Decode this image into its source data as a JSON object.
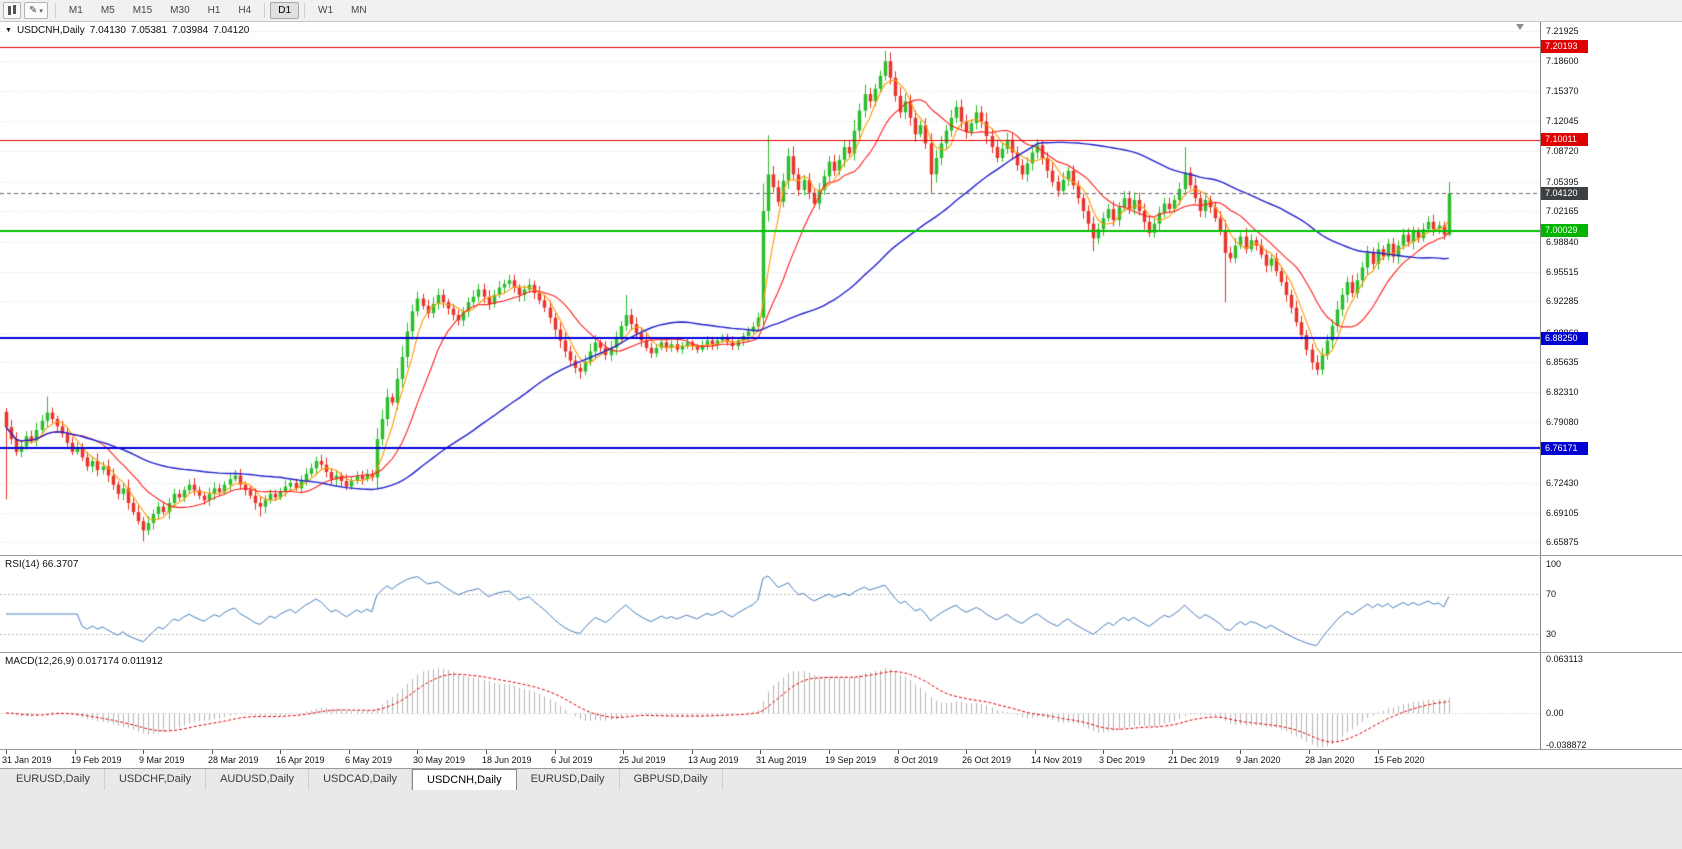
{
  "toolbar": {
    "timeframes": [
      "M1",
      "M5",
      "M15",
      "M30",
      "H1",
      "H4",
      "D1",
      "W1",
      "MN"
    ],
    "active_timeframe": "D1"
  },
  "main_chart": {
    "collapse_arrow": "▼",
    "symbol_timeframe": "USDCNH,Daily",
    "ohlc": {
      "open": "7.04130",
      "high": "7.05381",
      "low": "7.03984",
      "close": "7.04120"
    },
    "price_axis_labels": [
      "7.21925",
      "7.18600",
      "7.15370",
      "7.12045",
      "7.08720",
      "7.05395",
      "7.02165",
      "6.98840",
      "6.95515",
      "6.92285",
      "6.88860",
      "6.85635",
      "6.82310",
      "6.79080",
      "6.75755",
      "6.72430",
      "6.69105",
      "6.65875"
    ],
    "current_price_badge": "7.04120",
    "current_badge_color": "#3d4043",
    "level_badges": [
      {
        "text": "7.20193",
        "value": 7.20193,
        "color": "#e00000"
      },
      {
        "text": "7.10011",
        "value": 7.10011,
        "color": "#e00000"
      },
      {
        "text": "7.00029",
        "value": 7.00029,
        "color": "#00b400"
      },
      {
        "text": "6.88250",
        "value": 6.8825,
        "color": "#0000d0"
      },
      {
        "text": "6.76171",
        "value": 6.76171,
        "color": "#0000d0"
      }
    ]
  },
  "rsi_panel": {
    "label": "RSI(14) 66.3707",
    "current": 66.3707,
    "axis_labels": [
      {
        "text": "100",
        "value": 100
      },
      {
        "text": "70",
        "value": 70
      },
      {
        "text": "30",
        "value": 30
      }
    ],
    "dashed_levels": [
      70,
      30
    ]
  },
  "macd_panel": {
    "label": "MACD(12,26,9) 0.017174 0.011912",
    "main_current": 0.017174,
    "signal_current": 0.011912,
    "axis_labels": [
      {
        "text": "0.063113",
        "value": 0.063113
      },
      {
        "text": "0.00",
        "value": 0
      },
      {
        "text": "-0.038872",
        "value": -0.038872
      }
    ]
  },
  "date_axis": [
    "31 Jan 2019",
    "19 Feb 2019",
    "9 Mar 2019",
    "28 Mar 2019",
    "16 Apr 2019",
    "6 May 2019",
    "30 May 2019",
    "18 Jun 2019",
    "6 Jul 2019",
    "25 Jul 2019",
    "13 Aug 2019",
    "31 Aug 2019",
    "19 Sep 2019",
    "8 Oct 2019",
    "26 Oct 2019",
    "14 Nov 2019",
    "3 Dec 2019",
    "21 Dec 2019",
    "9 Jan 2020",
    "28 Jan 2020",
    "15 Feb 2020"
  ],
  "tabs": {
    "items": [
      "EURUSD,Daily",
      "USDCHF,Daily",
      "AUDUSD,Daily",
      "USDCAD,Daily",
      "USDCNH,Daily",
      "EURUSD,Daily",
      "GBPUSD,Daily"
    ],
    "active_index": 4
  },
  "chart_data": {
    "type": "candlestick",
    "symbol": "USDCNH",
    "timeframe": "Daily",
    "y_range": [
      6.645,
      7.229
    ],
    "current_price": 7.0412,
    "ohlc_current": {
      "open": 7.0413,
      "high": 7.05381,
      "low": 7.03984,
      "close": 7.0412
    },
    "bull_color": "#2dbe2d",
    "bear_color": "#e8342a",
    "first_open": 6.802,
    "closes": [
      6.785,
      6.772,
      6.758,
      6.764,
      6.775,
      6.77,
      6.782,
      6.792,
      6.801,
      6.794,
      6.786,
      6.778,
      6.768,
      6.758,
      6.762,
      6.752,
      6.742,
      6.748,
      6.738,
      6.742,
      6.732,
      6.722,
      6.712,
      6.718,
      6.702,
      6.692,
      6.682,
      6.672,
      6.68,
      6.69,
      6.698,
      6.692,
      6.702,
      6.712,
      6.708,
      6.716,
      6.722,
      6.716,
      6.71,
      6.705,
      6.712,
      6.718,
      6.714,
      6.722,
      6.728,
      6.732,
      6.722,
      6.716,
      6.71,
      6.702,
      6.698,
      6.705,
      6.712,
      6.708,
      6.715,
      6.72,
      6.724,
      6.718,
      6.726,
      6.734,
      6.74,
      6.748,
      6.744,
      6.736,
      6.728,
      6.732,
      6.726,
      6.72,
      6.726,
      6.732,
      6.728,
      6.734,
      6.73,
      6.772,
      6.794,
      6.818,
      6.812,
      6.838,
      6.862,
      6.89,
      6.912,
      6.926,
      6.918,
      6.91,
      6.92,
      6.93,
      6.922,
      6.915,
      6.908,
      6.902,
      6.912,
      6.922,
      6.928,
      6.936,
      6.928,
      6.92,
      6.93,
      6.938,
      6.942,
      6.946,
      6.938,
      6.93,
      6.936,
      6.941,
      6.932,
      6.924,
      6.916,
      6.905,
      6.892,
      6.88,
      6.868,
      6.858,
      6.85,
      6.846,
      6.857,
      6.868,
      6.878,
      6.872,
      6.864,
      6.872,
      6.884,
      6.896,
      6.908,
      6.898,
      6.888,
      6.88,
      6.872,
      6.866,
      6.872,
      6.878,
      6.872,
      6.876,
      6.87,
      6.874,
      6.878,
      6.874,
      6.87,
      6.875,
      6.88,
      6.876,
      6.88,
      6.884,
      6.878,
      6.874,
      6.88,
      6.885,
      6.89,
      6.895,
      6.905,
      7.022,
      7.062,
      7.048,
      7.032,
      7.055,
      7.082,
      7.062,
      7.045,
      7.056,
      7.042,
      7.03,
      7.045,
      7.06,
      7.076,
      7.066,
      7.078,
      7.092,
      7.085,
      7.11,
      7.132,
      7.15,
      7.142,
      7.156,
      7.17,
      7.186,
      7.168,
      7.148,
      7.13,
      7.142,
      7.124,
      7.106,
      7.116,
      7.096,
      7.062,
      7.08,
      7.096,
      7.11,
      7.124,
      7.136,
      7.12,
      7.108,
      7.118,
      7.13,
      7.12,
      7.104,
      7.092,
      7.08,
      7.09,
      7.1,
      7.086,
      7.072,
      7.062,
      7.074,
      7.086,
      7.094,
      7.08,
      7.066,
      7.054,
      7.044,
      7.056,
      7.066,
      7.05,
      7.036,
      7.022,
      7.008,
      6.992,
      7.002,
      7.014,
      7.024,
      7.012,
      7.026,
      7.036,
      7.024,
      7.034,
      7.022,
      7.01,
      6.998,
      7.008,
      7.02,
      7.03,
      7.024,
      7.034,
      7.046,
      7.064,
      7.05,
      7.036,
      7.022,
      7.034,
      7.026,
      7.014,
      7.0,
      6.976,
      6.97,
      6.984,
      6.994,
      6.98,
      6.99,
      6.984,
      6.974,
      6.962,
      6.97,
      6.956,
      6.944,
      6.93,
      6.916,
      6.9,
      6.886,
      6.87,
      6.856,
      6.848,
      6.864,
      6.88,
      6.896,
      6.914,
      6.93,
      6.944,
      6.932,
      6.946,
      6.96,
      6.976,
      6.964,
      6.98,
      6.972,
      6.986,
      6.972,
      6.984,
      6.996,
      6.988,
      7.0,
      6.992,
      7.002,
      7.01,
      7.002,
      7.006,
      6.996,
      7.0412
    ],
    "wick_overrides": {
      "0": [
        6.806,
        6.706
      ],
      "8": [
        6.8185,
        null
      ],
      "27": [
        null,
        6.66
      ],
      "50": [
        null,
        6.687
      ],
      "99": [
        6.952,
        null
      ],
      "113": [
        null,
        6.838
      ],
      "122": [
        6.93,
        null
      ],
      "149": [
        7.052,
        6.895
      ],
      "150": [
        7.105,
        null
      ],
      "173": [
        7.1975,
        null
      ],
      "182": [
        null,
        7.042
      ],
      "214": [
        null,
        6.978
      ],
      "232": [
        7.092,
        null
      ],
      "240": [
        null,
        6.922
      ],
      "258": [
        null,
        6.842
      ],
      "284": [
        7.0538,
        6.994
      ]
    },
    "moving_averages": [
      {
        "name": "fast",
        "period": 5,
        "color": "#ff9900",
        "width": 1.1
      },
      {
        "name": "mid",
        "period": 13,
        "color": "#ff2020",
        "width": 1.1
      },
      {
        "name": "slow",
        "period": 55,
        "color": "#2222cc",
        "width": 1.4
      }
    ],
    "levels": [
      {
        "value": 7.20193,
        "color": "#e00000",
        "width": 1
      },
      {
        "value": 7.10011,
        "color": "#e00000",
        "width": 1
      },
      {
        "value": 7.00029,
        "color": "#00c000",
        "width": 2
      },
      {
        "value": 6.8825,
        "color": "#0000d8",
        "width": 2
      },
      {
        "value": 6.76171,
        "color": "#0000d8",
        "width": 2
      }
    ],
    "rsi": {
      "period": 14,
      "color": "#4a7ebb"
    },
    "macd": {
      "fast": 12,
      "slow": 26,
      "signal": 9,
      "histogram_color": "#b6b6b6",
      "signal_color": "#e00000",
      "y_top": 0.063113,
      "y_bottom": -0.038872
    }
  }
}
